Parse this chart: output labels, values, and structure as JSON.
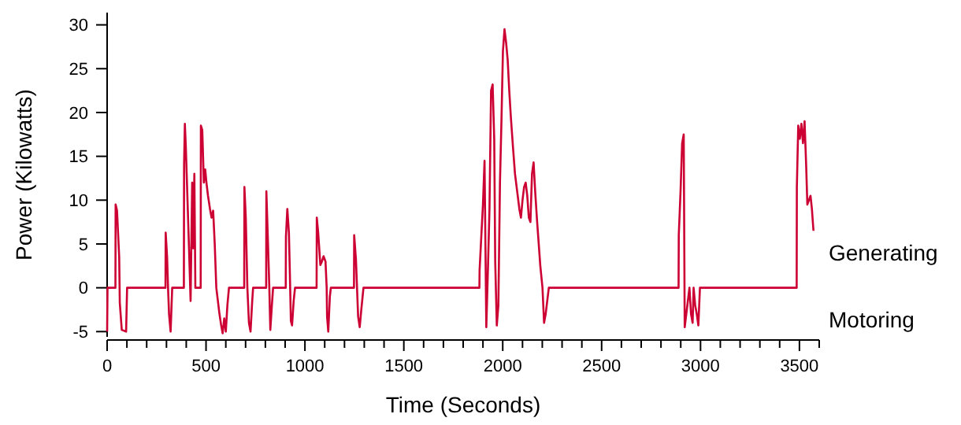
{
  "chart_data": {
    "type": "line",
    "xlabel": "Time (Seconds)",
    "ylabel": "Power (Kilowatts)",
    "xlim": [
      0,
      3600
    ],
    "ylim": [
      -5.6,
      31.4
    ],
    "xticks": [
      0,
      {
        "value": 100,
        "label": null
      },
      {
        "value": 200,
        "label": null
      },
      {
        "value": 300,
        "label": null
      },
      {
        "value": 400,
        "label": null
      },
      500,
      {
        "value": 600,
        "label": null
      },
      {
        "value": 700,
        "label": null
      },
      {
        "value": 800,
        "label": null
      },
      {
        "value": 900,
        "label": null
      },
      1000,
      {
        "value": 1100,
        "label": null
      },
      {
        "value": 1200,
        "label": null
      },
      {
        "value": 1300,
        "label": null
      },
      {
        "value": 1400,
        "label": null
      },
      1500,
      {
        "value": 1600,
        "label": null
      },
      {
        "value": 1700,
        "label": null
      },
      {
        "value": 1800,
        "label": null
      },
      {
        "value": 1900,
        "label": null
      },
      2000,
      {
        "value": 2100,
        "label": null
      },
      {
        "value": 2200,
        "label": null
      },
      {
        "value": 2300,
        "label": null
      },
      {
        "value": 2400,
        "label": null
      },
      2500,
      {
        "value": 2600,
        "label": null
      },
      {
        "value": 2700,
        "label": null
      },
      {
        "value": 2800,
        "label": null
      },
      {
        "value": 2900,
        "label": null
      },
      3000,
      {
        "value": 3100,
        "label": null
      },
      {
        "value": 3200,
        "label": null
      },
      {
        "value": 3300,
        "label": null
      },
      {
        "value": 3400,
        "label": null
      },
      3500,
      {
        "value": 3600,
        "label": null
      }
    ],
    "yticks": [
      -5,
      0,
      5,
      10,
      15,
      20,
      25,
      30
    ],
    "annotations": [
      "Generating",
      "Motoring"
    ],
    "grid": false,
    "marker": "none",
    "line_style": "solid",
    "x": [
      0,
      2,
      42,
      43,
      50,
      61,
      64,
      74,
      96,
      101,
      295,
      296,
      303,
      308,
      313,
      321,
      329,
      388,
      389,
      393,
      398,
      403,
      414,
      422,
      430,
      435,
      441,
      446,
      473,
      474,
      481,
      489,
      496,
      502,
      510,
      520,
      528,
      536,
      544,
      552,
      560,
      568,
      576,
      584,
      592,
      600,
      608,
      616,
      693,
      694,
      701,
      709,
      717,
      725,
      733,
      738,
      804,
      805,
      812,
      820,
      825,
      833,
      839,
      903,
      904,
      911,
      919,
      924,
      929,
      935,
      943,
      950,
      1059,
      1060,
      1067,
      1078,
      1086,
      1094,
      1104,
      1110,
      1112,
      1118,
      1126,
      1131,
      1248,
      1249,
      1258,
      1269,
      1277,
      1285,
      1296,
      1882,
      1883,
      1892,
      1900,
      1908,
      1917,
      1925,
      1933,
      1941,
      1949,
      1957,
      1962,
      1970,
      1978,
      1986,
      1994,
      2001,
      2009,
      2017,
      2025,
      2033,
      2041,
      2052,
      2062,
      2073,
      2084,
      2092,
      2100,
      2108,
      2116,
      2124,
      2132,
      2140,
      2148,
      2156,
      2164,
      2174,
      2182,
      2190,
      2201,
      2209,
      2217,
      2225,
      2233,
      2889,
      2890,
      2899,
      2907,
      2915,
      2920,
      2928,
      2936,
      2944,
      2952,
      2960,
      2965,
      2973,
      2981,
      2989,
      2997,
      3486,
      3487,
      3494,
      3502,
      3510,
      3518,
      3526,
      3534,
      3540,
      3548,
      3556,
      3563,
      3571
    ],
    "series": [
      {
        "color": "#cc0033",
        "values": [
          -5,
          0,
          0,
          9.5,
          8.8,
          3.5,
          -1.7,
          -4.8,
          -5,
          0,
          0,
          6.3,
          3.6,
          0,
          -3,
          -5,
          0,
          0,
          14,
          18.7,
          16,
          12.4,
          4.5,
          -1.5,
          12,
          4.5,
          13,
          0,
          0,
          18.5,
          18,
          12,
          13.5,
          12,
          10.5,
          9,
          8,
          8.8,
          5,
          0,
          -1.5,
          -3,
          -4.2,
          -5.2,
          -3.5,
          -5,
          -2,
          0,
          0,
          11.5,
          8,
          0,
          -4,
          -5,
          -1.7,
          0,
          0,
          11,
          6,
          0,
          -4.8,
          -2,
          0,
          0,
          5.8,
          9,
          6.3,
          1.5,
          -3.8,
          -4.3,
          -1.5,
          0,
          0,
          8,
          6.3,
          2.6,
          3,
          3.6,
          3,
          0,
          -3.3,
          -5,
          -1,
          0,
          0,
          6,
          3.2,
          -3.3,
          -4.5,
          -2.5,
          0,
          0,
          2,
          6,
          9.5,
          14.5,
          -4.5,
          2,
          9,
          22.5,
          23.2,
          17,
          3,
          -4.3,
          -2,
          12,
          19.5,
          27,
          29.5,
          28,
          26,
          22.5,
          19.5,
          16,
          13,
          11,
          9,
          8,
          10,
          11.5,
          12,
          10.5,
          8,
          7.5,
          13,
          14.3,
          11,
          7.5,
          5,
          2.5,
          0,
          -4,
          -3,
          -1.5,
          0,
          0,
          6,
          11,
          16.5,
          17.5,
          -4.5,
          -3,
          -1.5,
          0,
          -3,
          -4,
          0,
          -2,
          -3,
          -4.3,
          0,
          0,
          11.5,
          18.5,
          17,
          18.7,
          16.5,
          19,
          14,
          9.5,
          10,
          10.5,
          9,
          6.5
        ]
      }
    ]
  }
}
